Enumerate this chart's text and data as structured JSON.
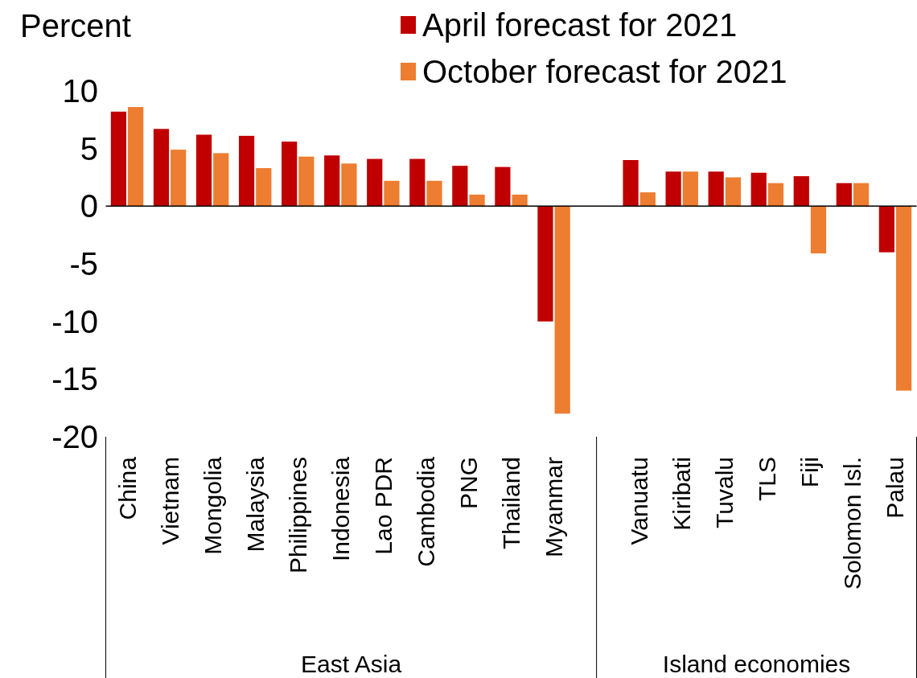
{
  "chart_data": {
    "type": "bar",
    "ylabel": "Percent",
    "categories": [
      "China",
      "Vietnam",
      "Mongolia",
      "Malaysia",
      "Philippines",
      "Indonesia",
      "Lao PDR",
      "Cambodia",
      "PNG",
      "Thailand",
      "Myanmar",
      null,
      "Vanuatu",
      "Kiribati",
      "Tuvalu",
      "TLS",
      "Fiji",
      "Solomon Isl.",
      "Palau"
    ],
    "series": [
      {
        "name": "April forecast for 2021",
        "color": "#c00000",
        "values": [
          8.2,
          6.7,
          6.2,
          6.1,
          5.6,
          4.4,
          4.1,
          4.1,
          3.5,
          3.4,
          -10,
          null,
          4.0,
          3.0,
          3.0,
          2.9,
          2.6,
          2.0,
          -4.0
        ]
      },
      {
        "name": "October forecast for 2021",
        "color": "#ed7d31",
        "values": [
          8.6,
          4.9,
          4.6,
          3.3,
          4.3,
          3.7,
          2.2,
          2.2,
          1.0,
          1.0,
          -18,
          null,
          1.2,
          3.0,
          2.5,
          2.0,
          -4.1,
          2.0,
          -16
        ]
      }
    ],
    "annotations": [
      "East Asia",
      "Island economies"
    ],
    "ylim": [
      -20,
      10
    ],
    "yticks": [
      10,
      5,
      0,
      -5,
      -10,
      -15,
      -20
    ],
    "legend": "top right"
  }
}
